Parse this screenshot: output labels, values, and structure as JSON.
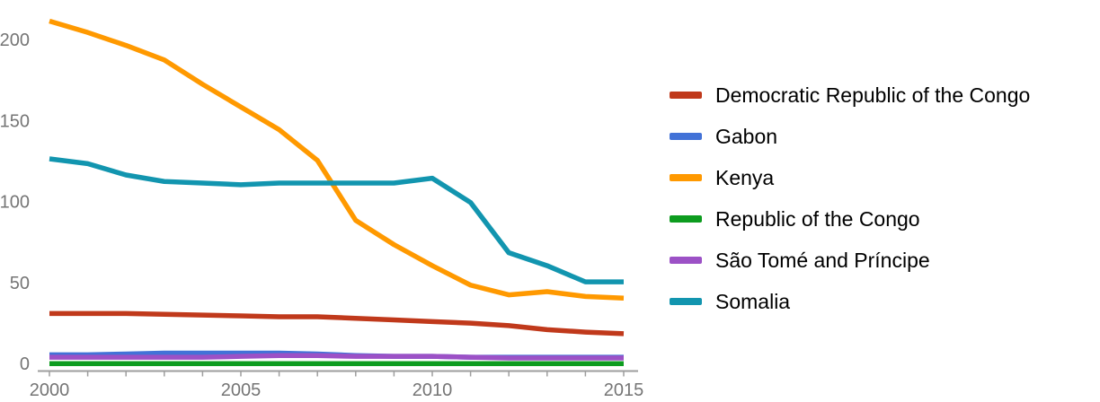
{
  "chart_data": {
    "type": "line",
    "title": "",
    "xlabel": "",
    "ylabel": "",
    "x": [
      2000,
      2001,
      2002,
      2003,
      2004,
      2005,
      2006,
      2007,
      2008,
      2009,
      2010,
      2011,
      2012,
      2013,
      2014,
      2015
    ],
    "series": [
      {
        "name": "Democratic Republic of the Congo",
        "color": "#c0391b",
        "values": [
          32.5,
          32.5,
          32.5,
          32,
          31.5,
          31,
          30.5,
          30.5,
          29.5,
          28.5,
          27.5,
          26.5,
          25,
          22.5,
          21,
          20
        ]
      },
      {
        "name": "Gabon",
        "color": "#4272d7",
        "values": [
          7,
          7,
          7.5,
          8,
          8,
          8,
          8,
          7.5,
          6.5,
          6,
          6,
          5.5,
          5.5,
          5.5,
          5.5,
          5.5
        ]
      },
      {
        "name": "Kenya",
        "color": "#ff9900",
        "values": [
          213,
          206,
          198,
          189,
          174,
          160,
          146,
          127,
          90,
          75,
          62,
          50,
          44,
          46,
          43,
          42
        ]
      },
      {
        "name": "Republic of the Congo",
        "color": "#0d9c1f",
        "values": [
          1.5,
          1.5,
          1.5,
          1.5,
          1.5,
          1.5,
          1.5,
          1.5,
          1.5,
          1.5,
          1.5,
          1.5,
          1.5,
          1.5,
          1.5,
          1.5
        ]
      },
      {
        "name": "São Tomé and Príncipe",
        "color": "#9c51c6",
        "values": [
          5.5,
          5.5,
          5.5,
          5.5,
          5.5,
          6,
          6.5,
          6.5,
          6,
          6,
          6,
          5.5,
          5,
          5,
          5,
          5
        ]
      },
      {
        "name": "Somalia",
        "color": "#1295af",
        "values": [
          128,
          125,
          118,
          114,
          113,
          112,
          113,
          113,
          113,
          113,
          116,
          101,
          70,
          62,
          52,
          52
        ]
      }
    ],
    "y_ticks": [
      0,
      50,
      100,
      150,
      200
    ],
    "x_tick_labels": [
      2000,
      2005,
      2010,
      2015
    ],
    "xlim": [
      2000,
      2015
    ],
    "ylim": [
      0,
      220
    ],
    "grid": false,
    "legend_position": "right",
    "colors": {
      "axis_text": "#757575",
      "axis_line": "#9e9e9e",
      "legend_text": "#000000",
      "background": "#ffffff"
    }
  }
}
